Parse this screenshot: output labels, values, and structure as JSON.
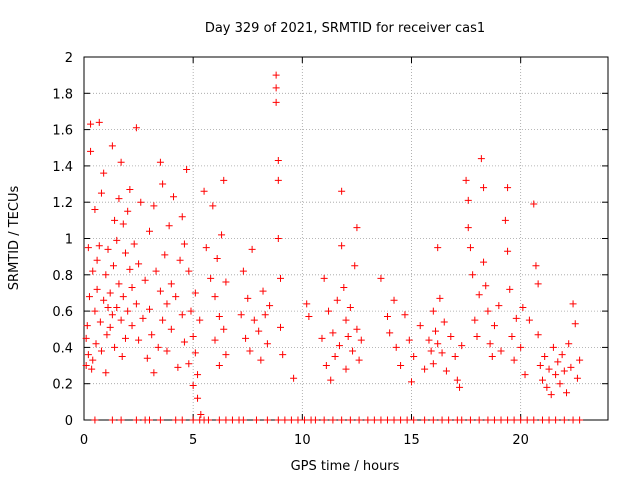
{
  "chart_data": {
    "type": "scatter",
    "title": "Day 329 of 2021, SRMTID for receiver cas1",
    "xlabel": "GPS time / hours",
    "ylabel": "SRMTID / TECUs",
    "xlim": [
      0,
      24
    ],
    "ylim": [
      0,
      2
    ],
    "xticks": [
      "0",
      "5",
      "10",
      "15",
      "20"
    ],
    "yticks": [
      "0",
      "0.2",
      "0.4",
      "0.6",
      "0.8",
      "1",
      "1.2",
      "1.4",
      "1.6",
      "1.8",
      "2"
    ],
    "grid": true,
    "marker": "+",
    "color": "#ff0000",
    "series": [
      {
        "name": "SRMTID",
        "points": [
          [
            0.1,
            0.3
          ],
          [
            0.1,
            0.45
          ],
          [
            0.15,
            0.52
          ],
          [
            0.2,
            0.36
          ],
          [
            0.2,
            0.95
          ],
          [
            0.25,
            0.68
          ],
          [
            0.3,
            1.63
          ],
          [
            0.3,
            1.48
          ],
          [
            0.35,
            0.28
          ],
          [
            0.4,
            0.82
          ],
          [
            0.4,
            0.33
          ],
          [
            0.5,
            1.16
          ],
          [
            0.5,
            0.6
          ],
          [
            0.55,
            0.42
          ],
          [
            0.6,
            0.88
          ],
          [
            0.6,
            0.72
          ],
          [
            0.7,
            1.64
          ],
          [
            0.7,
            0.96
          ],
          [
            0.75,
            0.54
          ],
          [
            0.8,
            1.25
          ],
          [
            0.8,
            0.38
          ],
          [
            0.9,
            1.36
          ],
          [
            0.9,
            0.66
          ],
          [
            1.0,
            0.8
          ],
          [
            1.0,
            0.26
          ],
          [
            1.05,
            0.47
          ],
          [
            1.1,
            0.94
          ],
          [
            1.1,
            0.62
          ],
          [
            1.2,
            0.7
          ],
          [
            1.2,
            0.51
          ],
          [
            1.3,
            1.51
          ],
          [
            1.3,
            0.58
          ],
          [
            1.35,
            0.85
          ],
          [
            1.4,
            1.1
          ],
          [
            1.4,
            0.4
          ],
          [
            1.5,
            0.62
          ],
          [
            1.5,
            0.99
          ],
          [
            1.6,
            1.22
          ],
          [
            1.6,
            0.75
          ],
          [
            1.7,
            1.42
          ],
          [
            1.7,
            0.55
          ],
          [
            1.75,
            0.35
          ],
          [
            1.8,
            1.08
          ],
          [
            1.8,
            0.68
          ],
          [
            1.9,
            0.92
          ],
          [
            1.9,
            0.45
          ],
          [
            2.0,
            1.15
          ],
          [
            2.0,
            0.6
          ],
          [
            2.1,
            1.27
          ],
          [
            2.1,
            0.83
          ],
          [
            2.2,
            0.73
          ],
          [
            2.2,
            0.52
          ],
          [
            2.3,
            0.97
          ],
          [
            2.4,
            1.61
          ],
          [
            2.4,
            0.64
          ],
          [
            2.5,
            0.86
          ],
          [
            2.5,
            0.44
          ],
          [
            2.6,
            1.2
          ],
          [
            2.7,
            0.56
          ],
          [
            2.8,
            0.77
          ],
          [
            2.9,
            0.34
          ],
          [
            3.0,
            1.04
          ],
          [
            3.0,
            0.61
          ],
          [
            3.1,
            0.47
          ],
          [
            3.2,
            1.18
          ],
          [
            3.2,
            0.26
          ],
          [
            3.3,
            0.82
          ],
          [
            3.4,
            0.4
          ],
          [
            3.5,
            1.42
          ],
          [
            3.5,
            0.71
          ],
          [
            3.6,
            1.3
          ],
          [
            3.6,
            0.55
          ],
          [
            3.7,
            0.91
          ],
          [
            3.8,
            0.64
          ],
          [
            3.8,
            0.38
          ],
          [
            3.9,
            1.07
          ],
          [
            4.0,
            0.75
          ],
          [
            4.0,
            0.5
          ],
          [
            4.1,
            1.23
          ],
          [
            4.2,
            0.68
          ],
          [
            4.3,
            0.29
          ],
          [
            4.4,
            0.88
          ],
          [
            4.5,
            1.12
          ],
          [
            4.5,
            0.58
          ],
          [
            4.6,
            0.97
          ],
          [
            4.6,
            0.43
          ],
          [
            4.7,
            1.38
          ],
          [
            4.8,
            0.82
          ],
          [
            4.8,
            0.31
          ],
          [
            4.9,
            0.6
          ],
          [
            5.0,
            0.46
          ],
          [
            5.0,
            0.19
          ],
          [
            5.1,
            0.7
          ],
          [
            5.1,
            0.37
          ],
          [
            5.2,
            0.25
          ],
          [
            5.2,
            0.12
          ],
          [
            5.3,
            0.55
          ],
          [
            5.35,
            0.03
          ],
          [
            5.5,
            1.26
          ],
          [
            5.6,
            0.95
          ],
          [
            5.8,
            0.78
          ],
          [
            5.9,
            1.18
          ],
          [
            6.0,
            0.68
          ],
          [
            6.0,
            0.44
          ],
          [
            6.1,
            0.89
          ],
          [
            6.2,
            0.57
          ],
          [
            6.2,
            0.3
          ],
          [
            6.3,
            1.02
          ],
          [
            6.4,
            1.32
          ],
          [
            6.4,
            0.5
          ],
          [
            6.5,
            0.76
          ],
          [
            6.5,
            0.36
          ],
          [
            7.2,
            0.58
          ],
          [
            7.3,
            0.82
          ],
          [
            7.4,
            0.45
          ],
          [
            7.5,
            0.67
          ],
          [
            7.6,
            0.38
          ],
          [
            7.7,
            0.94
          ],
          [
            7.8,
            0.55
          ],
          [
            8.0,
            0.49
          ],
          [
            8.1,
            0.33
          ],
          [
            8.2,
            0.71
          ],
          [
            8.3,
            0.58
          ],
          [
            8.4,
            0.42
          ],
          [
            8.5,
            0.63
          ],
          [
            8.8,
            1.9
          ],
          [
            8.8,
            1.83
          ],
          [
            8.8,
            1.75
          ],
          [
            8.9,
            1.43
          ],
          [
            8.9,
            1.32
          ],
          [
            8.9,
            1.0
          ],
          [
            9.0,
            0.78
          ],
          [
            9.0,
            0.51
          ],
          [
            9.1,
            0.36
          ],
          [
            9.6,
            0.23
          ],
          [
            10.2,
            0.64
          ],
          [
            10.3,
            0.57
          ],
          [
            10.9,
            0.45
          ],
          [
            11.0,
            0.78
          ],
          [
            11.1,
            0.3
          ],
          [
            11.2,
            0.6
          ],
          [
            11.3,
            0.22
          ],
          [
            11.4,
            0.48
          ],
          [
            11.5,
            0.35
          ],
          [
            11.6,
            0.66
          ],
          [
            11.7,
            0.41
          ],
          [
            11.8,
            1.26
          ],
          [
            11.8,
            0.96
          ],
          [
            11.9,
            0.73
          ],
          [
            12.0,
            0.55
          ],
          [
            12.0,
            0.28
          ],
          [
            12.1,
            0.46
          ],
          [
            12.2,
            0.62
          ],
          [
            12.3,
            0.38
          ],
          [
            12.4,
            0.85
          ],
          [
            12.5,
            1.06
          ],
          [
            12.5,
            0.5
          ],
          [
            12.6,
            0.33
          ],
          [
            12.7,
            0.44
          ],
          [
            13.6,
            0.78
          ],
          [
            13.9,
            0.57
          ],
          [
            14.0,
            0.48
          ],
          [
            14.2,
            0.66
          ],
          [
            14.3,
            0.4
          ],
          [
            14.5,
            0.3
          ],
          [
            14.7,
            0.58
          ],
          [
            14.9,
            0.44
          ],
          [
            15.0,
            0.21
          ],
          [
            15.1,
            0.35
          ],
          [
            15.4,
            0.52
          ],
          [
            15.6,
            0.28
          ],
          [
            15.8,
            0.44
          ],
          [
            15.9,
            0.38
          ],
          [
            16.0,
            0.6
          ],
          [
            16.0,
            0.31
          ],
          [
            16.1,
            0.49
          ],
          [
            16.2,
            0.95
          ],
          [
            16.2,
            0.42
          ],
          [
            16.3,
            0.67
          ],
          [
            16.4,
            0.37
          ],
          [
            16.5,
            0.54
          ],
          [
            16.6,
            0.27
          ],
          [
            16.8,
            0.46
          ],
          [
            17.0,
            0.35
          ],
          [
            17.1,
            0.22
          ],
          [
            17.2,
            0.18
          ],
          [
            17.3,
            0.41
          ],
          [
            17.5,
            1.32
          ],
          [
            17.6,
            1.21
          ],
          [
            17.6,
            1.06
          ],
          [
            17.7,
            0.95
          ],
          [
            17.8,
            0.8
          ],
          [
            17.9,
            0.55
          ],
          [
            18.0,
            0.46
          ],
          [
            18.1,
            0.69
          ],
          [
            18.2,
            1.44
          ],
          [
            18.3,
            1.28
          ],
          [
            18.3,
            0.87
          ],
          [
            18.4,
            0.74
          ],
          [
            18.5,
            0.6
          ],
          [
            18.6,
            0.42
          ],
          [
            18.7,
            0.35
          ],
          [
            18.8,
            0.52
          ],
          [
            19.0,
            0.63
          ],
          [
            19.1,
            0.38
          ],
          [
            19.3,
            1.1
          ],
          [
            19.4,
            1.28
          ],
          [
            19.4,
            0.93
          ],
          [
            19.5,
            0.72
          ],
          [
            19.6,
            0.46
          ],
          [
            19.7,
            0.33
          ],
          [
            19.8,
            0.56
          ],
          [
            20.0,
            0.4
          ],
          [
            20.1,
            0.62
          ],
          [
            20.2,
            0.25
          ],
          [
            20.4,
            0.55
          ],
          [
            20.6,
            1.19
          ],
          [
            20.7,
            0.85
          ],
          [
            20.8,
            0.75
          ],
          [
            20.8,
            0.47
          ],
          [
            20.9,
            0.3
          ],
          [
            21.0,
            0.22
          ],
          [
            21.1,
            0.35
          ],
          [
            21.2,
            0.18
          ],
          [
            21.3,
            0.28
          ],
          [
            21.4,
            0.14
          ],
          [
            21.5,
            0.4
          ],
          [
            21.6,
            0.25
          ],
          [
            21.7,
            0.32
          ],
          [
            21.8,
            0.2
          ],
          [
            21.9,
            0.36
          ],
          [
            22.0,
            0.27
          ],
          [
            22.1,
            0.15
          ],
          [
            22.2,
            0.42
          ],
          [
            22.3,
            0.29
          ],
          [
            22.4,
            0.64
          ],
          [
            22.5,
            0.53
          ],
          [
            22.6,
            0.23
          ],
          [
            22.7,
            0.33
          ]
        ]
      }
    ],
    "zero_points_x": [
      0.5,
      1.3,
      1.7,
      2.4,
      2.8,
      3.0,
      3.5,
      4.2,
      4.5,
      5.0,
      5.3,
      5.5,
      5.7,
      6.2,
      6.5,
      6.8,
      7.1,
      7.3,
      7.9,
      8.4,
      8.9,
      9.2,
      9.5,
      9.8,
      10.1,
      10.4,
      10.6,
      11.0,
      11.4,
      11.8,
      12.2,
      12.6,
      13.0,
      13.3,
      13.6,
      13.9,
      14.2,
      14.5,
      14.8,
      15.1,
      15.6,
      16.0,
      16.4,
      16.7,
      17.1,
      17.3,
      17.7,
      18.1,
      18.5,
      18.8,
      19.1,
      19.4,
      19.7,
      20.0,
      20.3,
      20.6,
      21.0,
      21.3,
      21.6,
      22.0,
      22.4,
      22.7
    ]
  }
}
